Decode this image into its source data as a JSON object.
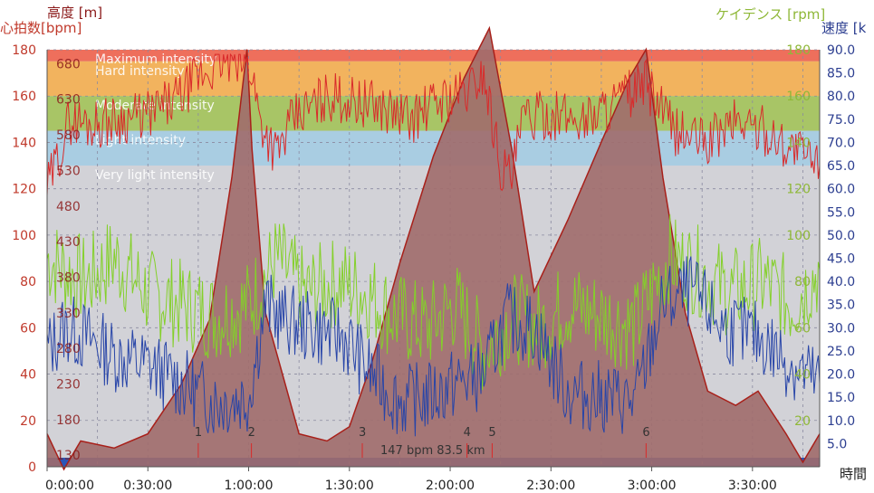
{
  "labels": {
    "altitude_axis": "高度 [m]",
    "hr_axis": "心拍数[bpm]",
    "cadence_axis": "ケイデンス [rpm]",
    "speed_axis": "速度 [k",
    "time_axis": "時間",
    "status": "147 bpm  83.5 km"
  },
  "colors": {
    "altitude_fill": "#a06b6b",
    "altitude_line": "#a8201a",
    "hr_line": "#d92a2a",
    "cadence_line": "#84d02a",
    "speed_line": "#2845a8",
    "axis_hr": "#c0392b",
    "axis_alt": "#8b1a1a",
    "axis_cad": "#8fb838",
    "axis_speed": "#2c3e90",
    "zone_max": "#ee6f5c",
    "zone_hard": "#f2b35e",
    "zone_moderate": "#a8c566",
    "zone_light": "#a9cde2",
    "zone_very_light": "#d8d8d8",
    "plot_bg": "#d0d0d8",
    "bottom_bar": "#2a56b8"
  },
  "chart_data": {
    "type": "line",
    "time_ticks": [
      "0:00:00",
      "0:30:00",
      "1:00:00",
      "1:30:00",
      "2:00:00",
      "2:30:00",
      "3:00:00",
      "3:30:00"
    ],
    "time_tick_seconds": [
      0,
      1800,
      3600,
      5400,
      7200,
      9000,
      10800,
      12600
    ],
    "xlim": [
      0,
      13800
    ],
    "hr_axis": {
      "ticks": [
        "0",
        "20",
        "40",
        "60",
        "80",
        "100",
        "120",
        "140",
        "160",
        "180"
      ],
      "ylim": [
        0,
        180
      ]
    },
    "altitude_axis": {
      "ticks": [
        "130",
        "180",
        "230",
        "280",
        "330",
        "380",
        "430",
        "480",
        "530",
        "580",
        "630",
        "680"
      ],
      "values": [
        130,
        180,
        230,
        280,
        330,
        380,
        430,
        480,
        530,
        580,
        630,
        680
      ]
    },
    "speed_axis": {
      "ticks": [
        "5.0",
        "10.0",
        "15.0",
        "20.0",
        "25.0",
        "30.0",
        "35.0",
        "40.0",
        "45.0",
        "50.0",
        "55.0",
        "60.0",
        "65.0",
        "70.0",
        "75.0",
        "80.0",
        "85.0",
        "90.0"
      ],
      "ylim": [
        0,
        90
      ]
    },
    "cadence_axis": {
      "ticks": [
        "20",
        "40",
        "60",
        "80",
        "100",
        "120",
        "140",
        "160",
        "180"
      ],
      "ylim": [
        0,
        180
      ]
    },
    "zones": [
      {
        "name": "Maximum intensity",
        "from": 175,
        "to": 180
      },
      {
        "name": "Hard intensity",
        "from": 160,
        "to": 175
      },
      {
        "name": "Moderate intensity",
        "from": 145,
        "to": 160
      },
      {
        "name": "Light intensity",
        "from": 130,
        "to": 145
      },
      {
        "name": "Very light intensity",
        "from": 0,
        "to": 130
      }
    ],
    "markers": [
      {
        "label": "1",
        "t": 2700
      },
      {
        "label": "2",
        "t": 3650
      },
      {
        "label": "3",
        "t": 5630
      },
      {
        "label": "4",
        "t": 7500
      },
      {
        "label": "5",
        "t": 7950
      },
      {
        "label": "6",
        "t": 10700
      }
    ],
    "series": [
      {
        "name": "高度",
        "axis": "altitude",
        "points": [
          [
            0,
            160
          ],
          [
            300,
            110
          ],
          [
            600,
            150
          ],
          [
            1200,
            140
          ],
          [
            1800,
            160
          ],
          [
            2400,
            230
          ],
          [
            2900,
            320
          ],
          [
            3300,
            520
          ],
          [
            3570,
            700
          ],
          [
            3660,
            560
          ],
          [
            3900,
            330
          ],
          [
            4500,
            160
          ],
          [
            5000,
            150
          ],
          [
            5400,
            170
          ],
          [
            5800,
            260
          ],
          [
            6300,
            400
          ],
          [
            6900,
            550
          ],
          [
            7450,
            660
          ],
          [
            7900,
            730
          ],
          [
            8300,
            560
          ],
          [
            8700,
            360
          ],
          [
            9300,
            460
          ],
          [
            9900,
            570
          ],
          [
            10400,
            660
          ],
          [
            10700,
            700
          ],
          [
            11000,
            520
          ],
          [
            11400,
            330
          ],
          [
            11800,
            220
          ],
          [
            12300,
            200
          ],
          [
            12700,
            220
          ],
          [
            13200,
            160
          ],
          [
            13500,
            120
          ],
          [
            13800,
            160
          ]
        ]
      },
      {
        "name": "心拍数",
        "axis": "hr",
        "points": [
          [
            0,
            120
          ],
          [
            150,
            130
          ],
          [
            400,
            150
          ],
          [
            800,
            148
          ],
          [
            1300,
            150
          ],
          [
            1800,
            152
          ],
          [
            2300,
            158
          ],
          [
            2700,
            168
          ],
          [
            3100,
            175
          ],
          [
            3450,
            175
          ],
          [
            3650,
            172
          ],
          [
            3800,
            150
          ],
          [
            4100,
            135
          ],
          [
            4400,
            150
          ],
          [
            5000,
            160
          ],
          [
            5500,
            158
          ],
          [
            6000,
            155
          ],
          [
            6500,
            150
          ],
          [
            7000,
            158
          ],
          [
            7500,
            162
          ],
          [
            7800,
            170
          ],
          [
            8100,
            130
          ],
          [
            8300,
            125
          ],
          [
            8500,
            150
          ],
          [
            9000,
            152
          ],
          [
            9600,
            150
          ],
          [
            10200,
            158
          ],
          [
            10700,
            165
          ],
          [
            11200,
            145
          ],
          [
            11800,
            140
          ],
          [
            12300,
            150
          ],
          [
            12800,
            145
          ],
          [
            13300,
            138
          ],
          [
            13800,
            130
          ]
        ]
      },
      {
        "name": "ケイデンス",
        "axis": "cadence",
        "points": [
          [
            0,
            90
          ],
          [
            300,
            85
          ],
          [
            700,
            80
          ],
          [
            1200,
            90
          ],
          [
            1800,
            75
          ],
          [
            2400,
            70
          ],
          [
            3000,
            65
          ],
          [
            3600,
            70
          ],
          [
            4100,
            90
          ],
          [
            4600,
            75
          ],
          [
            5200,
            80
          ],
          [
            5700,
            75
          ],
          [
            6200,
            65
          ],
          [
            6800,
            60
          ],
          [
            7300,
            70
          ],
          [
            7800,
            50
          ],
          [
            8300,
            65
          ],
          [
            8800,
            60
          ],
          [
            9300,
            70
          ],
          [
            9900,
            65
          ],
          [
            10500,
            60
          ],
          [
            11100,
            90
          ],
          [
            11600,
            85
          ],
          [
            12200,
            75
          ],
          [
            12800,
            80
          ],
          [
            13300,
            70
          ],
          [
            13800,
            85
          ]
        ]
      },
      {
        "name": "速度",
        "axis": "speed",
        "points": [
          [
            0,
            25
          ],
          [
            300,
            30
          ],
          [
            700,
            28
          ],
          [
            1200,
            24
          ],
          [
            1800,
            22
          ],
          [
            2400,
            18
          ],
          [
            3000,
            14
          ],
          [
            3600,
            15
          ],
          [
            3900,
            35
          ],
          [
            4200,
            32
          ],
          [
            4700,
            30
          ],
          [
            5300,
            28
          ],
          [
            5800,
            20
          ],
          [
            6300,
            14
          ],
          [
            6800,
            15
          ],
          [
            7300,
            18
          ],
          [
            7800,
            20
          ],
          [
            8200,
            32
          ],
          [
            8700,
            30
          ],
          [
            9300,
            16
          ],
          [
            9900,
            15
          ],
          [
            10500,
            14
          ],
          [
            11000,
            35
          ],
          [
            11500,
            38
          ],
          [
            12100,
            30
          ],
          [
            12700,
            28
          ],
          [
            13300,
            22
          ],
          [
            13800,
            18
          ]
        ]
      }
    ]
  }
}
